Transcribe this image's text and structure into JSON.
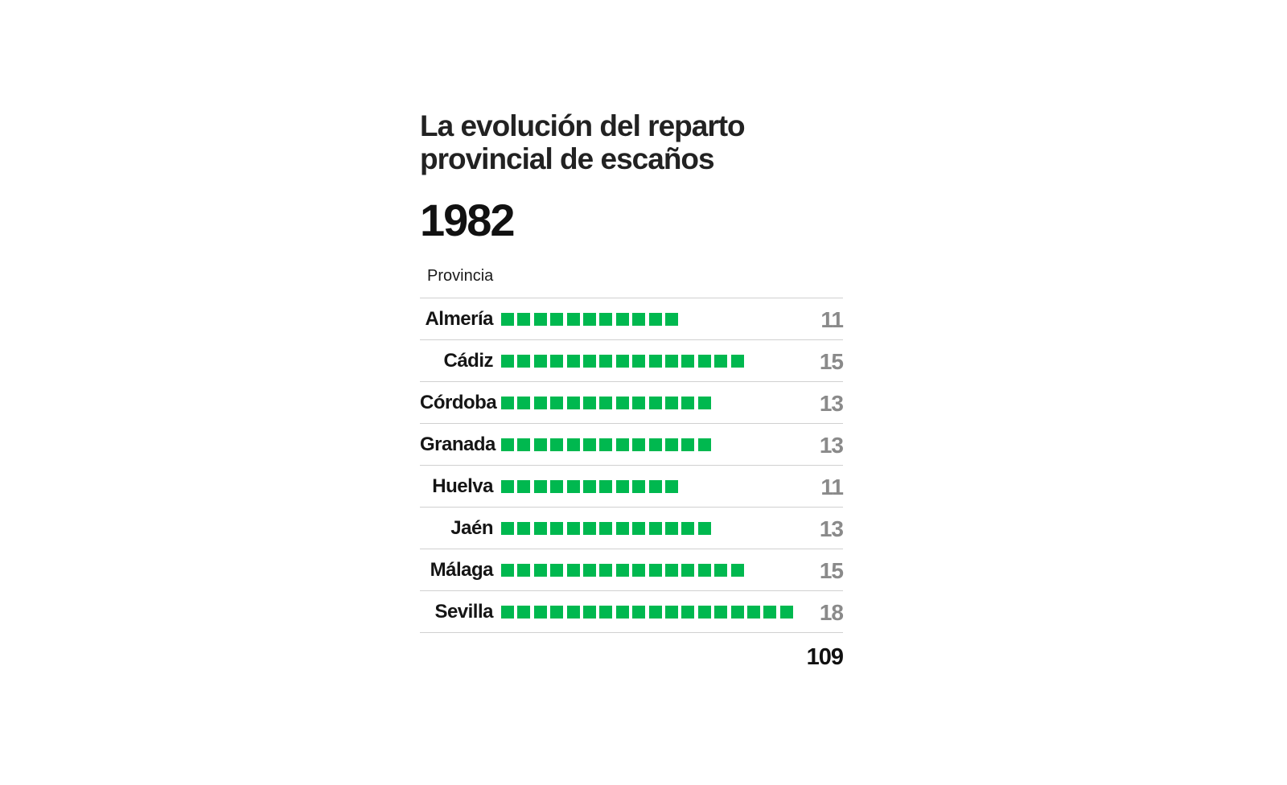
{
  "title": "La evolución del reparto provincial de escaños",
  "year": "1982",
  "column_header": "Provincia",
  "total": "109",
  "colors": {
    "seat": "#00b84f",
    "value": "#8a8a8a",
    "divider": "#d0d0d0"
  },
  "chart_data": {
    "type": "bar",
    "title": "La evolución del reparto provincial de escaños",
    "subtitle": "1982",
    "xlabel": "",
    "ylabel": "Provincia",
    "categories": [
      "Almería",
      "Cádiz",
      "Córdoba",
      "Granada",
      "Huelva",
      "Jaén",
      "Málaga",
      "Sevilla"
    ],
    "values": [
      11,
      15,
      13,
      13,
      11,
      13,
      15,
      18
    ],
    "total": 109
  }
}
